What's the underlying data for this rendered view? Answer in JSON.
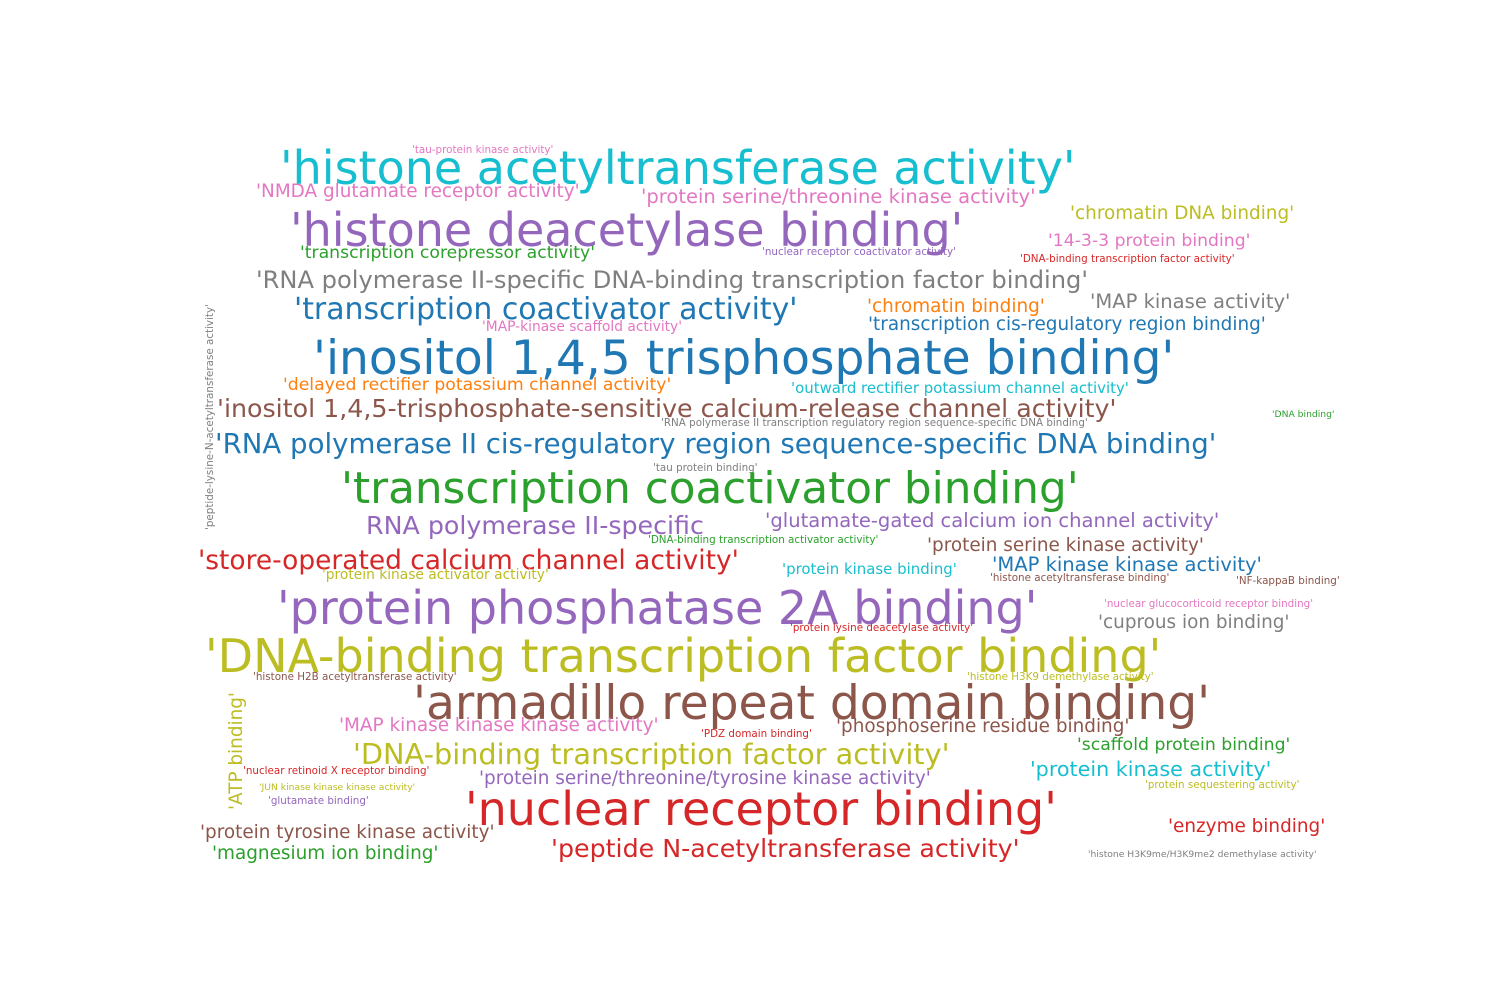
{
  "colors": {
    "cyan": "#17becf",
    "purple": "#9467bd",
    "pink": "#e377c2",
    "olive": "#bcbd22",
    "green": "#2ca02c",
    "gray": "#7f7f7f",
    "blue": "#1f77b4",
    "orange": "#ff7f0e",
    "brown": "#8c564b",
    "red": "#d62728"
  },
  "words": [
    {
      "text": "'histone acetyltransferase activity'",
      "color": "cyan"
    },
    {
      "text": "'tau-protein kinase activity'",
      "color": "pink"
    },
    {
      "text": "'NMDA glutamate receptor activity'",
      "color": "pink"
    },
    {
      "text": "'protein serine/threonine kinase activity'",
      "color": "pink"
    },
    {
      "text": "'histone deacetylase binding'",
      "color": "purple"
    },
    {
      "text": "'chromatin DNA binding'",
      "color": "olive"
    },
    {
      "text": "'14-3-3 protein binding'",
      "color": "pink"
    },
    {
      "text": "'transcription corepressor activity'",
      "color": "green"
    },
    {
      "text": "'nuclear receptor coactivator activity'",
      "color": "purple"
    },
    {
      "text": "'DNA-binding transcription factor activity'",
      "color": "red"
    },
    {
      "text": "'RNA polymerase II-specific DNA-binding transcription factor binding'",
      "color": "gray"
    },
    {
      "text": "'transcription coactivator activity'",
      "color": "blue"
    },
    {
      "text": "'chromatin binding'",
      "color": "orange"
    },
    {
      "text": "'MAP kinase activity'",
      "color": "gray"
    },
    {
      "text": "'transcription cis-regulatory region binding'",
      "color": "blue"
    },
    {
      "text": "'MAP-kinase scaffold activity'",
      "color": "pink"
    },
    {
      "text": "'peptide-lysine-N-acetyltransferase activity'",
      "color": "gray"
    },
    {
      "text": "'inositol 1,4,5 trisphosphate binding'",
      "color": "blue"
    },
    {
      "text": "'delayed rectifier potassium channel activity'",
      "color": "orange"
    },
    {
      "text": "'outward rectifier potassium channel activity'",
      "color": "cyan"
    },
    {
      "text": "'inositol 1,4,5-trisphosphate-sensitive calcium-release channel activity'",
      "color": "brown"
    },
    {
      "text": "'DNA binding'",
      "color": "green"
    },
    {
      "text": "'RNA polymerase II transcription regulatory region sequence-specific DNA binding'",
      "color": "gray"
    },
    {
      "text": "'RNA polymerase II cis-regulatory region sequence-specific DNA binding'",
      "color": "blue"
    },
    {
      "text": "'tau protein binding'",
      "color": "gray"
    },
    {
      "text": "'transcription coactivator binding'",
      "color": "green"
    },
    {
      "text": "RNA polymerase II-specific",
      "color": "purple"
    },
    {
      "text": "'glutamate-gated calcium ion channel activity'",
      "color": "purple"
    },
    {
      "text": "'DNA-binding transcription activator activity'",
      "color": "green"
    },
    {
      "text": "'protein serine kinase activity'",
      "color": "brown"
    },
    {
      "text": "'store-operated calcium channel activity'",
      "color": "red"
    },
    {
      "text": "'protein kinase activator activity'",
      "color": "olive"
    },
    {
      "text": "'protein kinase binding'",
      "color": "cyan"
    },
    {
      "text": "'MAP kinase kinase activity'",
      "color": "blue"
    },
    {
      "text": "'histone acetyltransferase binding'",
      "color": "brown"
    },
    {
      "text": "'NF-kappaB binding'",
      "color": "brown"
    },
    {
      "text": "'protein phosphatase 2A binding'",
      "color": "purple"
    },
    {
      "text": "'nuclear glucocorticoid receptor binding'",
      "color": "pink"
    },
    {
      "text": "'protein lysine deacetylase activity'",
      "color": "red"
    },
    {
      "text": "'cuprous ion binding'",
      "color": "gray"
    },
    {
      "text": "'DNA-binding transcription factor binding'",
      "color": "olive"
    },
    {
      "text": "'histone H2B acetyltransferase activity'",
      "color": "brown"
    },
    {
      "text": "'histone H3K9 demethylase activity'",
      "color": "olive"
    },
    {
      "text": "'ATP binding'",
      "color": "olive"
    },
    {
      "text": "'armadillo repeat domain binding'",
      "color": "brown"
    },
    {
      "text": "'MAP kinase kinase kinase activity'",
      "color": "pink"
    },
    {
      "text": "'PDZ domain binding'",
      "color": "red"
    },
    {
      "text": "'phosphoserine residue binding'",
      "color": "brown"
    },
    {
      "text": "'DNA-binding transcription factor activity'",
      "color": "olive"
    },
    {
      "text": "'scaffold protein binding'",
      "color": "green"
    },
    {
      "text": "'nuclear retinoid X receptor binding'",
      "color": "red"
    },
    {
      "text": "'protein serine/threonine/tyrosine kinase activity'",
      "color": "purple"
    },
    {
      "text": "'protein kinase activity'",
      "color": "cyan"
    },
    {
      "text": "'JUN kinase kinase kinase activity'",
      "color": "olive"
    },
    {
      "text": "'protein sequestering activity'",
      "color": "olive"
    },
    {
      "text": "'glutamate binding'",
      "color": "purple"
    },
    {
      "text": "'nuclear receptor binding'",
      "color": "red"
    },
    {
      "text": "'protein tyrosine kinase activity'",
      "color": "brown"
    },
    {
      "text": "'enzyme binding'",
      "color": "red"
    },
    {
      "text": "'magnesium ion binding'",
      "color": "green"
    },
    {
      "text": "'peptide N-acetyltransferase activity'",
      "color": "red"
    },
    {
      "text": "'histone H3K9me/H3K9me2 demethylase activity'",
      "color": "gray"
    }
  ]
}
